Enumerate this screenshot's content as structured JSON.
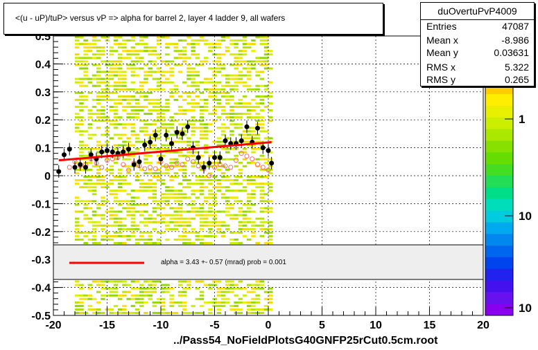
{
  "title": "<(u - uP)/tuP> versus   vP => alpha for barrel 2, layer 4 ladder 9, all wafers",
  "stats": {
    "name": "duOvertuPvP4009",
    "rows": [
      {
        "label": "Entries",
        "value": "47087"
      },
      {
        "label": "Mean x",
        "value": "-8.986"
      },
      {
        "label": "Mean y",
        "value": "0.03631"
      },
      {
        "label": "RMS x",
        "value": "5.322"
      },
      {
        "label": "RMS y",
        "value": "0.265"
      }
    ]
  },
  "fit_label": "alpha =    3.43 +-  0.57 (mrad) prob = 0.001",
  "footer": "../Pass54_NoFieldPlotsG40GNFP25rCut0.5cm.root",
  "colors": {
    "fit_line": "#ff0000",
    "profile_points": "#000000",
    "open_markers": "#ff6666",
    "legend_band": "#eeeeee"
  },
  "chart_data": {
    "type": "scatter",
    "title": "<(u - uP)/tuP> versus   vP => alpha for barrel 2, layer 4 ladder 9, all wafers",
    "xlim": [
      -20,
      20
    ],
    "ylim": [
      -0.5,
      0.5
    ],
    "x_ticks": [
      "-20",
      "-15",
      "-10",
      "-5",
      "0",
      "5",
      "10",
      "15",
      "20"
    ],
    "y_ticks": [
      "-0.5",
      "-0.4",
      "-0.3",
      "-0.2",
      "-0.1",
      "0",
      "0.1",
      "0.2",
      "0.3",
      "0.4",
      "0.5"
    ],
    "z_ticks": [
      "1",
      "10",
      "10"
    ],
    "grid": true,
    "series": [
      {
        "name": "",
        "kind": "profile",
        "x": [
          -19.5,
          -19,
          -18.5,
          -18,
          -17.5,
          -17,
          -16.5,
          -16,
          -15.5,
          -15,
          -14.5,
          -14,
          -13.5,
          -13,
          -12.5,
          -12,
          -11.5,
          -11,
          -10.5,
          -10,
          -9.5,
          -9,
          -8.5,
          -8,
          -7.5,
          -7,
          -6.5,
          -6,
          -5.5,
          -5,
          -4.5,
          -4,
          -3.5,
          -3,
          -2.5,
          -2,
          -1.5,
          -1,
          -0.5,
          0,
          0.3
        ],
        "y": [
          0.015,
          0.075,
          0.095,
          0.03,
          0.04,
          0.03,
          0.075,
          0.06,
          0.085,
          0.09,
          0.085,
          0.08,
          0.085,
          0.095,
          0.04,
          0.05,
          0.11,
          0.12,
          0.145,
          0.06,
          0.145,
          0.115,
          0.155,
          0.15,
          0.175,
          0.1,
          0.065,
          0.03,
          0.045,
          0.065,
          0.065,
          0.125,
          0.115,
          0.115,
          0.125,
          0.175,
          0.12,
          0.17,
          0.1,
          0.09,
          0.045
        ]
      },
      {
        "name": "",
        "kind": "open-markers",
        "x": [
          -18.5,
          -18,
          -17.5,
          -17,
          -16.5,
          -16,
          -15.5,
          -15,
          -14.5,
          -14,
          -13.5,
          -13,
          -12.5,
          -12,
          -11.5,
          -11,
          -10.5,
          -10,
          -9.5,
          -9,
          -8.5,
          -8,
          -7.5,
          -7,
          -6.5,
          -6,
          -5.5,
          -5,
          -4.5,
          -4,
          -3.5,
          -3,
          -2.5,
          -2,
          -1.5,
          -1,
          -0.5,
          0
        ],
        "y": [
          0.03,
          0.05,
          0.035,
          0.04,
          0.06,
          0.045,
          0.03,
          0.055,
          0.06,
          0.065,
          0.04,
          0.02,
          0.045,
          0.035,
          0.025,
          0.03,
          0.025,
          0.05,
          0.035,
          0.03,
          0.045,
          0.04,
          0.06,
          0.05,
          0.035,
          0.025,
          0.0,
          0.03,
          0.04,
          0.035,
          0.03,
          0.055,
          0.08,
          0.07,
          0.06,
          0.04,
          0.03,
          0.02
        ]
      }
    ],
    "fit": {
      "x": [
        -19.5,
        0.3
      ],
      "y": [
        0.055,
        0.12
      ]
    },
    "legend_placement": "bottom band"
  }
}
